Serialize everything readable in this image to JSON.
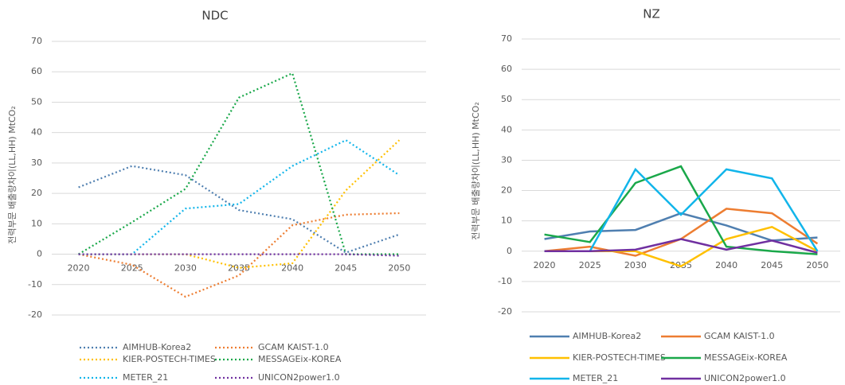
{
  "chart_data": [
    {
      "type": "line",
      "title": "NDC",
      "y_label": "전력부문 배출량차이(LL,HH) MtCO₂",
      "line_style": "dotted",
      "grid": true,
      "legend": "bottom",
      "categories": [
        "2020",
        "2025",
        "2030",
        "2035",
        "2040",
        "2045",
        "2050"
      ],
      "ylim": [
        -20,
        70
      ],
      "yticks": [
        -20,
        -10,
        0,
        10,
        20,
        30,
        40,
        50,
        60,
        70
      ],
      "series": [
        {
          "name": "AIMHUB-Korea2",
          "color": "#4f7fb0",
          "values": [
            22,
            29,
            26,
            14.5,
            11.5,
            0.5,
            6.5
          ]
        },
        {
          "name": "GCAM KAIST-1.0",
          "color": "#ed7d31",
          "values": [
            0,
            -3.5,
            -14,
            -7,
            9.5,
            13,
            13.5
          ]
        },
        {
          "name": "KIER-POSTECH-TIMES",
          "color": "#ffc000",
          "values": [
            0,
            0,
            0,
            -4.5,
            -3,
            21,
            37.5
          ]
        },
        {
          "name": "MESSAGEix-KOREA",
          "color": "#1aa84a",
          "values": [
            0,
            10.5,
            21.5,
            51.5,
            59.5,
            0,
            0
          ]
        },
        {
          "name": "METER_21",
          "color": "#12b5ea",
          "values": [
            0,
            0,
            15,
            16.5,
            29,
            37.5,
            26
          ]
        },
        {
          "name": "UNICON2power1.0",
          "color": "#7030a0",
          "values": [
            0,
            0,
            0,
            0,
            0,
            0,
            -0.5
          ]
        }
      ]
    },
    {
      "type": "line",
      "title": "NZ",
      "y_label": "전력부문 배출량차이(LL,HH) MtCO₂",
      "line_style": "solid",
      "grid": true,
      "legend": "bottom",
      "categories": [
        "2020",
        "2025",
        "2030",
        "2035",
        "2040",
        "2045",
        "2050"
      ],
      "ylim": [
        -20,
        70
      ],
      "yticks": [
        -20,
        -10,
        0,
        10,
        20,
        30,
        40,
        50,
        60,
        70
      ],
      "series": [
        {
          "name": "AIMHUB-Korea2",
          "color": "#4f7fb0",
          "values": [
            4,
            6.5,
            7,
            12.5,
            8.5,
            3.5,
            4.5
          ]
        },
        {
          "name": "GCAM KAIST-1.0",
          "color": "#ed7d31",
          "values": [
            0,
            1.5,
            -1.5,
            4,
            14,
            12.5,
            2.5
          ]
        },
        {
          "name": "KIER-POSTECH-TIMES",
          "color": "#ffc000",
          "values": [
            0,
            0,
            0,
            -5,
            4,
            8,
            0
          ]
        },
        {
          "name": "MESSAGEix-KOREA",
          "color": "#1aa84a",
          "values": [
            5.5,
            3,
            22.5,
            28,
            1.5,
            0,
            -1
          ]
        },
        {
          "name": "METER_21",
          "color": "#12b5ea",
          "values": [
            0,
            0,
            27,
            12,
            27,
            24,
            0
          ]
        },
        {
          "name": "UNICON2power1.0",
          "color": "#7030a0",
          "values": [
            0,
            0,
            0.5,
            4,
            0.5,
            3.5,
            -0.5
          ]
        }
      ]
    }
  ]
}
